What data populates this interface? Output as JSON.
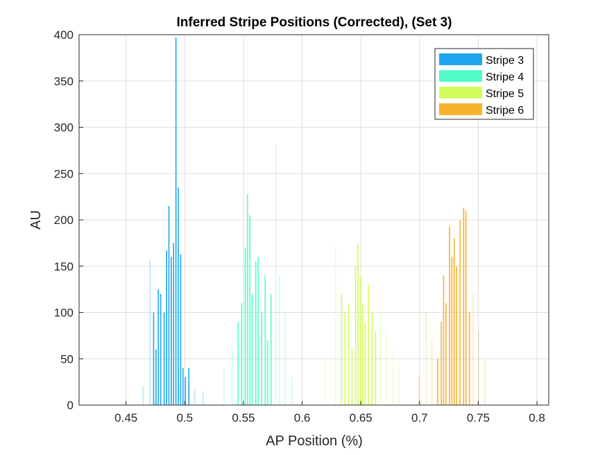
{
  "chart_data": {
    "type": "bar",
    "title": "Inferred Stripe Positions (Corrected),  (Set 3)",
    "xlabel": "AP Position (%)",
    "ylabel": "AU",
    "xlim": [
      0.41,
      0.81
    ],
    "ylim": [
      0,
      400
    ],
    "xticks": [
      0.45,
      0.5,
      0.55,
      0.6,
      0.65,
      0.7,
      0.75,
      0.8
    ],
    "xtick_labels": [
      "0.45",
      "0.5",
      "0.55",
      "0.6",
      "0.65",
      "0.7",
      "0.75",
      "0.8"
    ],
    "yticks": [
      0,
      50,
      100,
      150,
      200,
      250,
      300,
      350,
      400
    ],
    "ytick_labels": [
      "0",
      "50",
      "100",
      "150",
      "200",
      "250",
      "300",
      "350",
      "400"
    ],
    "grid": true,
    "legend_position": "top-right",
    "bin_width": 0.001,
    "series": [
      {
        "name": "Stripe 3",
        "color": "#1ea5f0",
        "peaks": [
          {
            "x": 0.4645,
            "y": 20,
            "faint": true
          },
          {
            "x": 0.4705,
            "y": 157,
            "faint": true
          },
          {
            "x": 0.4735,
            "y": 100
          },
          {
            "x": 0.4755,
            "y": 60
          },
          {
            "x": 0.4775,
            "y": 125
          },
          {
            "x": 0.4795,
            "y": 120
          },
          {
            "x": 0.4825,
            "y": 100
          },
          {
            "x": 0.4845,
            "y": 167
          },
          {
            "x": 0.4865,
            "y": 215
          },
          {
            "x": 0.4885,
            "y": 160
          },
          {
            "x": 0.4905,
            "y": 175
          },
          {
            "x": 0.4925,
            "y": 397
          },
          {
            "x": 0.4945,
            "y": 235
          },
          {
            "x": 0.4965,
            "y": 163
          },
          {
            "x": 0.4985,
            "y": 40
          },
          {
            "x": 0.5005,
            "y": 30
          },
          {
            "x": 0.5035,
            "y": 40
          },
          {
            "x": 0.5085,
            "y": 18,
            "faint": true
          },
          {
            "x": 0.5155,
            "y": 15,
            "faint": true
          }
        ]
      },
      {
        "name": "Stripe 4",
        "color": "#52fcc8",
        "peaks": [
          {
            "x": 0.5335,
            "y": 40,
            "faint": true
          },
          {
            "x": 0.5405,
            "y": 60,
            "faint": true
          },
          {
            "x": 0.5455,
            "y": 90
          },
          {
            "x": 0.5485,
            "y": 110
          },
          {
            "x": 0.5515,
            "y": 170
          },
          {
            "x": 0.5535,
            "y": 228
          },
          {
            "x": 0.5555,
            "y": 205
          },
          {
            "x": 0.5575,
            "y": 120
          },
          {
            "x": 0.5605,
            "y": 155
          },
          {
            "x": 0.5625,
            "y": 160
          },
          {
            "x": 0.5655,
            "y": 100
          },
          {
            "x": 0.5685,
            "y": 140
          },
          {
            "x": 0.5705,
            "y": 70
          },
          {
            "x": 0.5735,
            "y": 120
          },
          {
            "x": 0.5775,
            "y": 282,
            "faint": true
          },
          {
            "x": 0.5805,
            "y": 140,
            "faint": true
          },
          {
            "x": 0.5855,
            "y": 100,
            "faint": true
          },
          {
            "x": 0.5915,
            "y": 30,
            "faint": true
          }
        ]
      },
      {
        "name": "Stripe 5",
        "color": "#d2fc5a",
        "peaks": [
          {
            "x": 0.6195,
            "y": 50,
            "faint": true
          },
          {
            "x": 0.6285,
            "y": 173,
            "faint": true
          },
          {
            "x": 0.6335,
            "y": 120
          },
          {
            "x": 0.6365,
            "y": 100
          },
          {
            "x": 0.6395,
            "y": 110
          },
          {
            "x": 0.6425,
            "y": 60
          },
          {
            "x": 0.6455,
            "y": 150
          },
          {
            "x": 0.6475,
            "y": 175
          },
          {
            "x": 0.6495,
            "y": 140
          },
          {
            "x": 0.6515,
            "y": 110
          },
          {
            "x": 0.6535,
            "y": 90
          },
          {
            "x": 0.6565,
            "y": 130
          },
          {
            "x": 0.6595,
            "y": 100
          },
          {
            "x": 0.6625,
            "y": 80
          },
          {
            "x": 0.6665,
            "y": 100,
            "faint": true
          },
          {
            "x": 0.6715,
            "y": 80,
            "faint": true
          },
          {
            "x": 0.6775,
            "y": 60,
            "faint": true
          },
          {
            "x": 0.6825,
            "y": 45,
            "faint": true
          }
        ]
      },
      {
        "name": "Stripe 6",
        "color": "#f7b22e",
        "peaks": [
          {
            "x": 0.6995,
            "y": 30,
            "faint": true
          },
          {
            "x": 0.7055,
            "y": 100,
            "faint": true
          },
          {
            "x": 0.7105,
            "y": 70,
            "faint": true
          },
          {
            "x": 0.7155,
            "y": 50
          },
          {
            "x": 0.7185,
            "y": 90
          },
          {
            "x": 0.7205,
            "y": 140
          },
          {
            "x": 0.7225,
            "y": 110
          },
          {
            "x": 0.7255,
            "y": 193
          },
          {
            "x": 0.7275,
            "y": 160
          },
          {
            "x": 0.7295,
            "y": 180
          },
          {
            "x": 0.7315,
            "y": 150
          },
          {
            "x": 0.7345,
            "y": 200
          },
          {
            "x": 0.7375,
            "y": 213
          },
          {
            "x": 0.7395,
            "y": 210
          },
          {
            "x": 0.7425,
            "y": 100
          },
          {
            "x": 0.7455,
            "y": 120,
            "faint": true
          },
          {
            "x": 0.7505,
            "y": 80,
            "faint": true
          },
          {
            "x": 0.7555,
            "y": 50,
            "faint": true
          }
        ]
      }
    ]
  }
}
